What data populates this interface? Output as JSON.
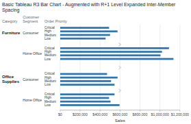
{
  "chart_data": {
    "type": "bar",
    "orientation": "horizontal",
    "title": "Basic Tableau R3 Bar Chart - Augmented with R+1 Level Expanded Inter-Member Spacing",
    "xlabel": "Sales",
    "color": "#2E75B6",
    "xlim": [
      0,
      1200000
    ],
    "xticks": [
      {
        "value": 0,
        "label": "$0"
      },
      {
        "value": 200000,
        "label": "$200,000"
      },
      {
        "value": 400000,
        "label": "$400,000"
      },
      {
        "value": 600000,
        "label": "$600,000"
      },
      {
        "value": 800000,
        "label": "$800,000"
      },
      {
        "value": 1000000,
        "label": "$1,000,000"
      },
      {
        "value": 1200000,
        "label": "$1,200,000"
      }
    ],
    "grid": true,
    "headers": {
      "category": "Category",
      "segment": "Customer\nSegment",
      "priority": "Order Priority"
    },
    "groups": [
      {
        "category": "Furniture",
        "segment": "Consumer",
        "categories": [
          "Critical",
          "High",
          "Medium",
          "Low"
        ],
        "values": [
          490000,
          575000,
          500000,
          455000
        ]
      },
      {
        "category": null,
        "segment": "Home Office",
        "categories": [
          "Critical",
          "High",
          "Medium",
          "Low"
        ],
        "values": [
          1090000,
          1020000,
          1005000,
          1135000
        ]
      },
      {
        "category": "Office\nSupplies",
        "segment": "Consumer",
        "categories": [
          "Critical",
          "High",
          "Medium",
          "Low"
        ],
        "values": [
          470000,
          575000,
          510000,
          545000
        ]
      },
      {
        "category": null,
        "segment": "Home Office",
        "categories": [
          "Critical",
          "High",
          "Medium",
          "Low"
        ],
        "values": [
          545000,
          490000,
          505000,
          595000
        ]
      }
    ]
  }
}
